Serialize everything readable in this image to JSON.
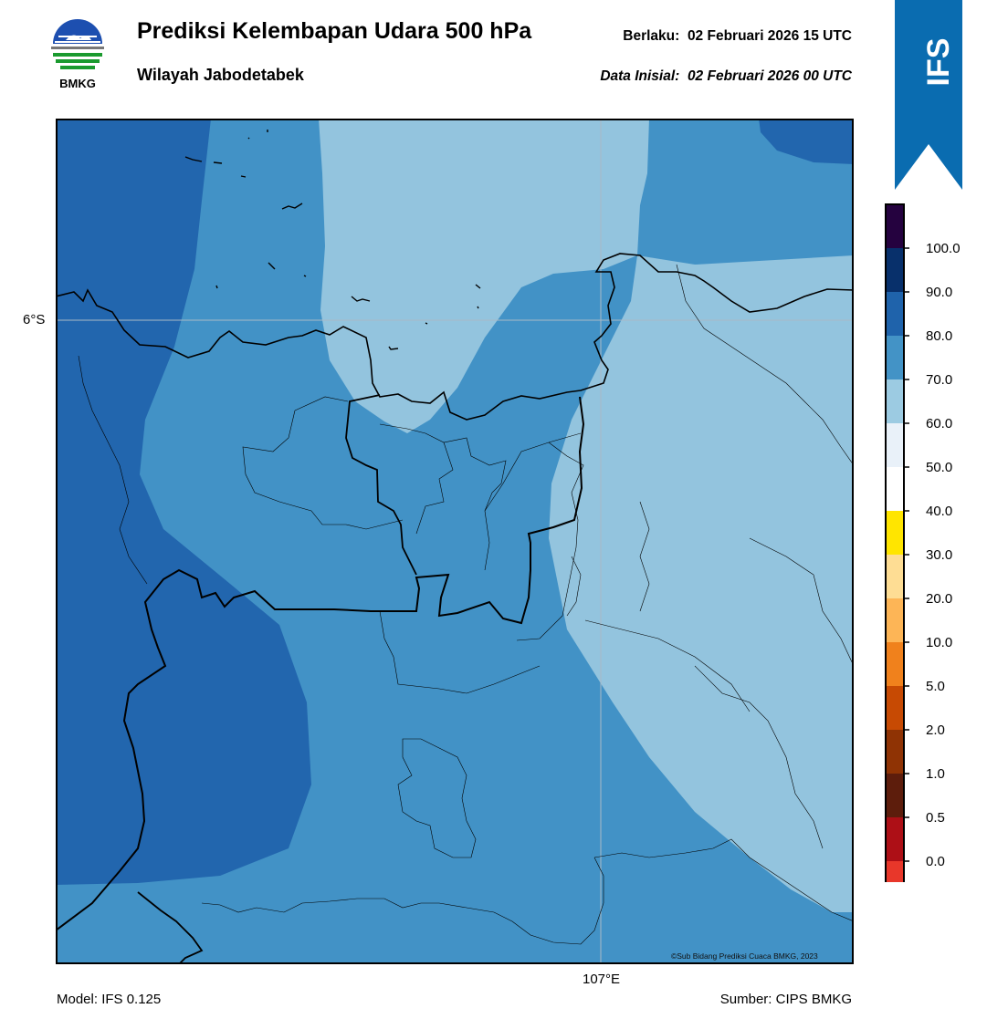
{
  "header": {
    "logo_text": "BMKG",
    "title": "Prediksi Kelembapan Udara 500 hPa",
    "region": "Wilayah Jabodetabek",
    "valid_label": "Berlaku:",
    "valid_value": "02 Februari 2026 15 UTC",
    "init_label": "Data Inisial:",
    "init_value": "02 Februari 2026 00 UTC"
  },
  "banner": {
    "text": "IFS",
    "color": "#0a6cb0"
  },
  "map": {
    "lat_label": "6°S",
    "lon_label": "107°E",
    "credit": "©Sub Bidang Prediksi Cuaca BMKG, 2023",
    "fill_colors": {
      "band_80_90": "#2266ae",
      "band_70_80": "#4292c6",
      "band_60_70": "#93c4de"
    }
  },
  "colorbar": {
    "tick_labels": [
      "0.0",
      "0.5",
      "1.0",
      "2.0",
      "5.0",
      "10.0",
      "20.0",
      "30.0",
      "40.0",
      "50.0",
      "60.0",
      "70.0",
      "80.0",
      "90.0",
      "100.0"
    ],
    "colors": [
      "#e8372a",
      "#ad0f16",
      "#5d1d0c",
      "#8f3304",
      "#c74a03",
      "#f0811c",
      "#fdb556",
      "#fedd94",
      "#ffe500",
      "#ffffff",
      "#e9f1f9",
      "#9ccbe2",
      "#4393c6",
      "#1f63ab",
      "#08306b",
      "#25023f"
    ]
  },
  "footer": {
    "model": "Model: IFS 0.125",
    "source": "Sumber: CIPS BMKG"
  }
}
